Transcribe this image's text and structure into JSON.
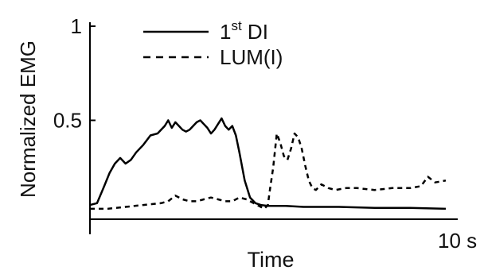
{
  "chart_data": {
    "type": "line",
    "xlabel": "Time",
    "ylabel": "Normalized EMG",
    "xlim": [
      0,
      10
    ],
    "ylim": [
      0,
      1
    ],
    "x_tick_labels": [
      {
        "value": 10,
        "label": "10 s"
      }
    ],
    "y_tick_labels": [
      {
        "value": 0.5,
        "label": "0.5"
      },
      {
        "value": 1,
        "label": "1"
      }
    ],
    "grid": false,
    "legend": "top-center",
    "series": [
      {
        "name": "1st DI",
        "name_base": "1",
        "name_sup": "st",
        "name_rest": " DI",
        "style": "solid",
        "color": "#000000",
        "x": [
          0.0,
          0.2,
          0.4,
          0.55,
          0.7,
          0.85,
          1.0,
          1.15,
          1.3,
          1.5,
          1.7,
          1.9,
          2.1,
          2.2,
          2.3,
          2.4,
          2.5,
          2.6,
          2.7,
          2.8,
          2.9,
          3.0,
          3.1,
          3.2,
          3.3,
          3.4,
          3.5,
          3.6,
          3.7,
          3.8,
          3.9,
          4.0,
          4.1,
          4.2,
          4.35,
          4.5,
          4.65,
          4.8,
          5.0,
          5.5,
          6.0,
          7.0,
          8.0,
          9.0,
          10.0
        ],
        "y": [
          0.05,
          0.06,
          0.15,
          0.22,
          0.27,
          0.3,
          0.27,
          0.29,
          0.33,
          0.37,
          0.42,
          0.43,
          0.47,
          0.5,
          0.46,
          0.49,
          0.47,
          0.45,
          0.44,
          0.45,
          0.47,
          0.49,
          0.5,
          0.48,
          0.46,
          0.43,
          0.45,
          0.48,
          0.51,
          0.47,
          0.45,
          0.47,
          0.42,
          0.33,
          0.18,
          0.09,
          0.06,
          0.05,
          0.045,
          0.045,
          0.04,
          0.04,
          0.035,
          0.035,
          0.03
        ]
      },
      {
        "name": "LUM(I)",
        "style": "dashed",
        "color": "#000000",
        "x": [
          0.0,
          0.5,
          1.0,
          1.5,
          2.0,
          2.2,
          2.4,
          2.6,
          2.8,
          3.0,
          3.2,
          3.4,
          3.6,
          3.8,
          4.0,
          4.2,
          4.4,
          4.6,
          4.8,
          4.9,
          5.0,
          5.05,
          5.15,
          5.25,
          5.35,
          5.45,
          5.55,
          5.65,
          5.75,
          5.85,
          5.95,
          6.05,
          6.15,
          6.25,
          6.35,
          6.5,
          6.7,
          6.9,
          7.2,
          7.5,
          8.0,
          8.5,
          9.0,
          9.3,
          9.5,
          9.7,
          10.0
        ],
        "y": [
          0.03,
          0.03,
          0.04,
          0.05,
          0.06,
          0.07,
          0.1,
          0.08,
          0.07,
          0.07,
          0.08,
          0.09,
          0.08,
          0.07,
          0.07,
          0.09,
          0.08,
          0.06,
          0.04,
          0.03,
          0.05,
          0.12,
          0.25,
          0.43,
          0.38,
          0.31,
          0.29,
          0.35,
          0.43,
          0.41,
          0.35,
          0.26,
          0.18,
          0.14,
          0.13,
          0.16,
          0.14,
          0.13,
          0.14,
          0.14,
          0.13,
          0.14,
          0.14,
          0.15,
          0.2,
          0.17,
          0.18
        ]
      }
    ]
  }
}
